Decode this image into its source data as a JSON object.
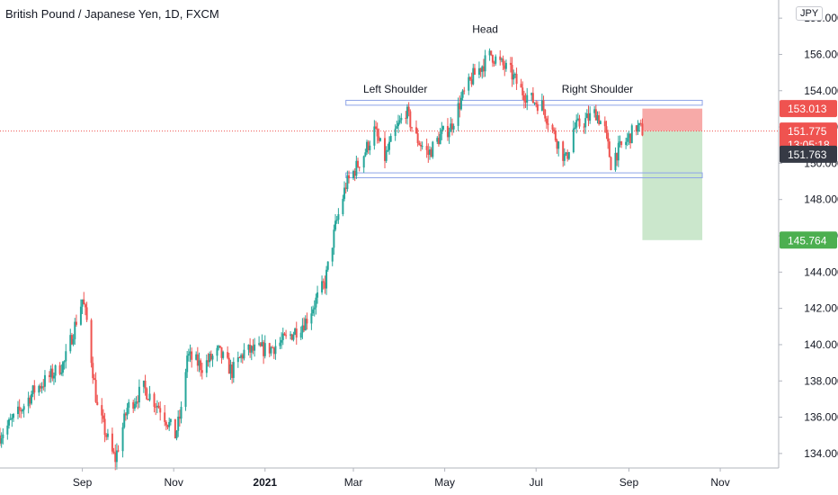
{
  "header": {
    "title": "British Pound / Japanese Yen, 1D, FXCM",
    "currency": "JPY"
  },
  "colors": {
    "up": "#26a69a",
    "down": "#ef5350",
    "price_line": "#ef5350",
    "stop_zone": "#f7a5a3",
    "target_zone": "#c8e6c9",
    "pattern_box": "#8ea4e8",
    "axis_line": "#b2b5be",
    "current_price_tag": "#ef5350",
    "bid_tag": "#363a45",
    "target_tag": "#4caf50"
  },
  "chart_data": {
    "type": "candlestick",
    "symbol": "GBPJPY",
    "timeframe": "1D",
    "y_ticks": [
      "134.000",
      "136.000",
      "138.000",
      "140.000",
      "142.000",
      "144.000",
      "146.000",
      "148.000",
      "150.000",
      "152.000",
      "154.000",
      "156.000",
      "158.000"
    ],
    "ylim": [
      133.2,
      159.0
    ],
    "x_ticks": [
      {
        "label": "Sep",
        "date": "2020-09-01",
        "bold": false
      },
      {
        "label": "Nov",
        "date": "2020-11-01",
        "bold": false
      },
      {
        "label": "2021",
        "date": "2021-01-01",
        "bold": true
      },
      {
        "label": "Mar",
        "date": "2021-03-01",
        "bold": false
      },
      {
        "label": "May",
        "date": "2021-05-01",
        "bold": false
      },
      {
        "label": "Jul",
        "date": "2021-07-01",
        "bold": false
      },
      {
        "label": "Sep",
        "date": "2021-09-01",
        "bold": false
      },
      {
        "label": "Nov",
        "date": "2021-11-01",
        "bold": false
      }
    ],
    "xlim": [
      "2020-07-08",
      "2021-12-10"
    ],
    "price_path": [
      [
        "2020-07-08",
        135.0
      ],
      [
        "2020-07-20",
        136.2
      ],
      [
        "2020-07-31",
        137.5
      ],
      [
        "2020-08-10",
        138.2
      ],
      [
        "2020-08-20",
        139.0
      ],
      [
        "2020-09-01",
        142.5
      ],
      [
        "2020-09-04",
        141.3
      ],
      [
        "2020-09-11",
        136.5
      ],
      [
        "2020-09-21",
        134.0
      ],
      [
        "2020-09-23",
        133.7
      ],
      [
        "2020-10-01",
        136.5
      ],
      [
        "2020-10-12",
        137.6
      ],
      [
        "2020-10-23",
        136.5
      ],
      [
        "2020-11-02",
        135.0
      ],
      [
        "2020-11-06",
        136.3
      ],
      [
        "2020-11-10",
        139.4
      ],
      [
        "2020-11-20",
        138.8
      ],
      [
        "2020-12-01",
        139.6
      ],
      [
        "2020-12-10",
        138.5
      ],
      [
        "2020-12-18",
        139.6
      ],
      [
        "2021-01-05",
        139.8
      ],
      [
        "2021-01-15",
        140.3
      ],
      [
        "2021-01-28",
        141.3
      ],
      [
        "2021-02-10",
        143.4
      ],
      [
        "2021-02-17",
        146.5
      ],
      [
        "2021-02-24",
        148.8
      ],
      [
        "2021-03-08",
        150.5
      ],
      [
        "2021-03-15",
        151.8
      ],
      [
        "2021-03-22",
        150.3
      ],
      [
        "2021-03-29",
        151.7
      ],
      [
        "2021-04-05",
        152.9
      ],
      [
        "2021-04-12",
        151.4
      ],
      [
        "2021-04-20",
        150.5
      ],
      [
        "2021-04-28",
        151.5
      ],
      [
        "2021-05-05",
        152.0
      ],
      [
        "2021-05-12",
        153.5
      ],
      [
        "2021-05-20",
        154.8
      ],
      [
        "2021-05-27",
        155.5
      ],
      [
        "2021-06-01",
        156.0
      ],
      [
        "2021-06-07",
        155.5
      ],
      [
        "2021-06-14",
        155.0
      ],
      [
        "2021-06-21",
        154.0
      ],
      [
        "2021-06-28",
        153.5
      ],
      [
        "2021-07-05",
        153.2
      ],
      [
        "2021-07-12",
        151.8
      ],
      [
        "2021-07-19",
        150.5
      ],
      [
        "2021-07-21",
        150.2
      ],
      [
        "2021-07-26",
        151.9
      ],
      [
        "2021-08-02",
        152.3
      ],
      [
        "2021-08-10",
        152.8
      ],
      [
        "2021-08-16",
        151.8
      ],
      [
        "2021-08-20",
        150.0
      ],
      [
        "2021-08-23",
        150.5
      ],
      [
        "2021-08-30",
        151.2
      ],
      [
        "2021-09-06",
        152.0
      ],
      [
        "2021-09-10",
        151.8
      ]
    ],
    "series": [
      {
        "name": "",
        "candle_start": "2020-07-08",
        "candle_end": "2021-09-10"
      }
    ],
    "annotations": [
      {
        "text": "Head",
        "date": "2021-05-28",
        "price": 157.2
      },
      {
        "text": "Left Shoulder",
        "date": "2021-03-29",
        "price": 153.9
      },
      {
        "text": "Right Shoulder",
        "date": "2021-08-11",
        "price": 153.9
      }
    ],
    "neckline_boxes": [
      {
        "from": "2021-02-24",
        "to": "2021-10-20",
        "low": 153.25,
        "high": 153.42
      },
      {
        "from": "2021-02-24",
        "to": "2021-10-20",
        "low": 149.25,
        "high": 149.42
      }
    ],
    "position": {
      "type": "short",
      "from": "2021-09-10",
      "to": "2021-10-20",
      "entry": 151.775,
      "stop": 153.013,
      "target": 145.764
    },
    "price_tags": [
      {
        "label": "153.013",
        "price": 153.013,
        "color_key": "current_price_tag",
        "kind": "stop"
      },
      {
        "label": "151.775",
        "sub_label": "13:05:18",
        "price": 151.775,
        "color_key": "current_price_tag",
        "kind": "last"
      },
      {
        "label": "151.763",
        "price": 151.763,
        "color_key": "bid_tag",
        "kind": "bid"
      },
      {
        "label": "145.764",
        "price": 145.764,
        "color_key": "target_tag",
        "kind": "target"
      }
    ],
    "last_price": 151.775,
    "grid": false
  }
}
